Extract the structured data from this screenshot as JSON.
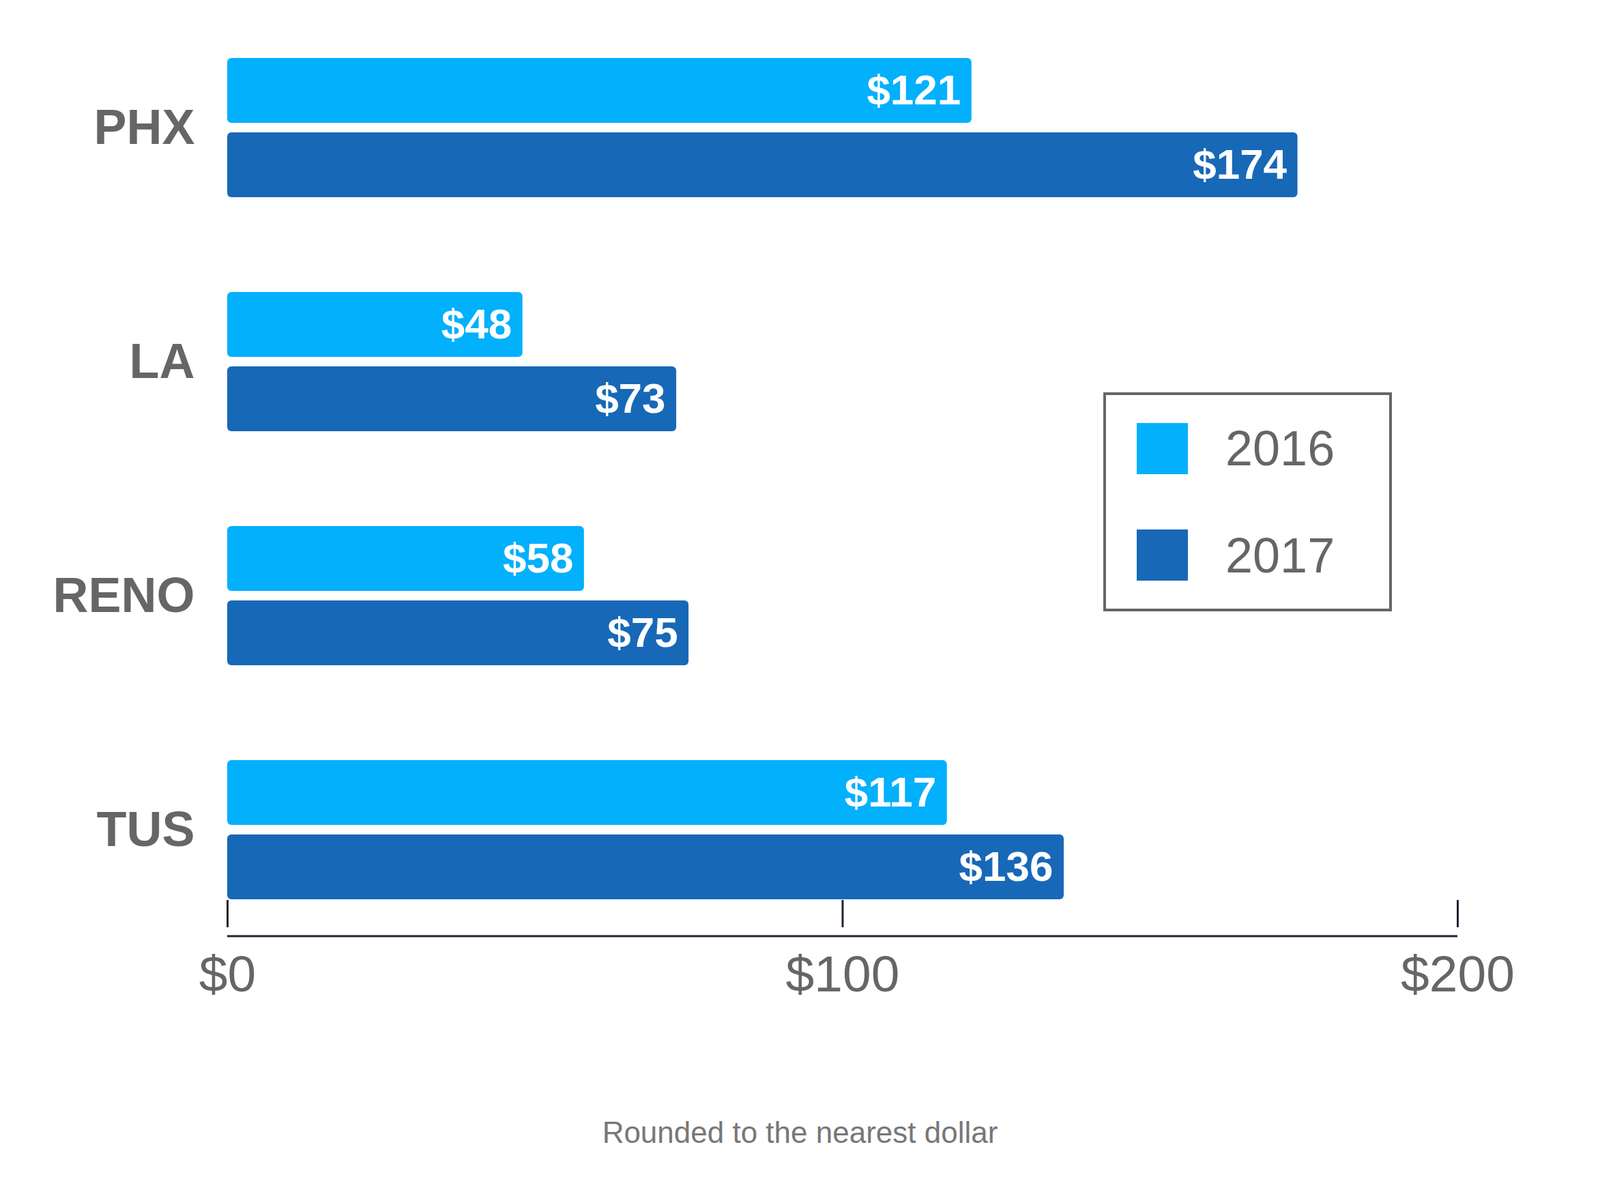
{
  "chart_data": {
    "type": "bar",
    "orientation": "horizontal",
    "categories": [
      "PHX",
      "LA",
      "RENO",
      "TUS"
    ],
    "series": [
      {
        "name": "2016",
        "color": "#03b0fc",
        "values": [
          121,
          48,
          58,
          117
        ],
        "value_labels": [
          "$121",
          "$48",
          "$58",
          "$117"
        ]
      },
      {
        "name": "2017",
        "color": "#1868b8",
        "values": [
          174,
          73,
          75,
          136
        ],
        "value_labels": [
          "$174",
          "$73",
          "$75",
          "$136"
        ]
      }
    ],
    "xlim": [
      0,
      200
    ],
    "xticks": [
      {
        "value": 0,
        "label": "$0"
      },
      {
        "value": 100,
        "label": "$100"
      },
      {
        "value": 200,
        "label": "$200"
      }
    ],
    "xlabel": "Rounded to the nearest dollar",
    "data_labels": true,
    "legend": "right",
    "grid": false
  }
}
